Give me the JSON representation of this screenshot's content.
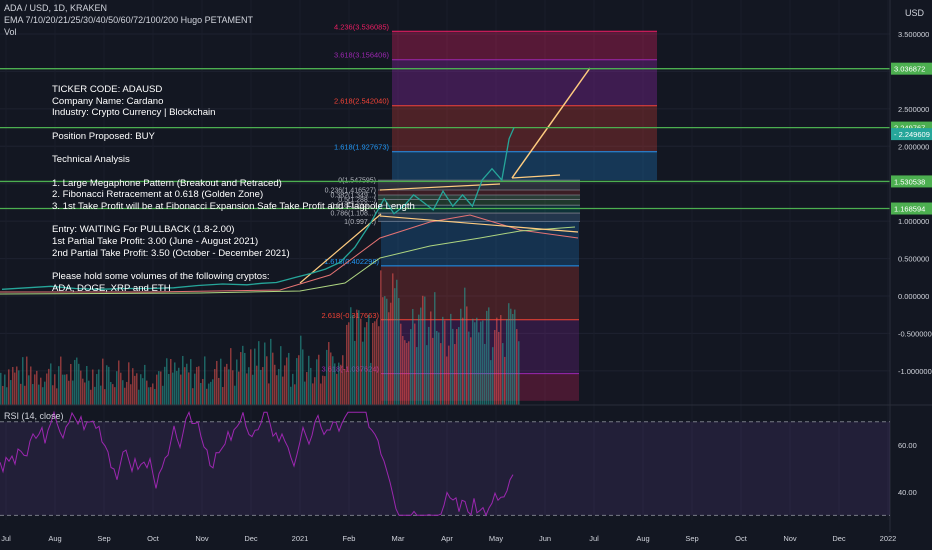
{
  "header": {
    "symbol_line": "ADA / USD, 1D, KRAKEN",
    "ema_line": "EMA 7/10/20/21/25/30/40/50/60/72/100/200 Hugo PETAMENT",
    "vol_label": "Vol",
    "currency": "USD",
    "rsi_label": "RSI (14, close)"
  },
  "colors": {
    "background": "#131722",
    "green_line": "#4caf50",
    "price_tag_green": "#26a69a",
    "rsi_line": "#9c27b0",
    "candle_up": "#26a69a",
    "candle_down": "#ef5350"
  },
  "note": {
    "lines_a": [
      "TICKER CODE: ADAUSD",
      "Company Name: Cardano",
      "Industry: Crypto Currency | Blockchain"
    ],
    "position": "Position Proposed: BUY",
    "analysis_title": "Technical Analysis",
    "lines_b": [
      "1. Large Megaphone Pattern (Breakout and Retraced)",
      "2. Fibonacci Retracement at 0.618 (Golden Zone)",
      "3. 1st Take Profit will be at Fibonacci Expansion Safe Take Profit and Flagpole Length"
    ],
    "lines_c": [
      "Entry: WAITING For PULLBACK (1.8-2.00)",
      "1st Partial Take Profit: 3.00 (June - August 2021)",
      "2nd Partial Take Profit: 3.50 (October - December 2021)"
    ],
    "lines_d": [
      "Please hold some volumes of the following cryptos:",
      "ADA, DOGE, XRP and ETH"
    ]
  },
  "chart_data": {
    "type": "line",
    "symbol": "ADAUSD",
    "ylim": [
      -1.4,
      3.6
    ],
    "price_axis_ticks": [
      "3.500000",
      "3.000000",
      "2.500000",
      "2.000000",
      "1.500000",
      "1.000000",
      "0.500000",
      "0.000000",
      "-0.500000",
      "-1.000000"
    ],
    "price_axis_values": [
      3.5,
      3.0,
      2.5,
      2.0,
      1.5,
      1.0,
      0.5,
      0.0,
      -0.5,
      -1.0
    ],
    "time_axis_labels": [
      "Jul",
      "Aug",
      "Sep",
      "Oct",
      "Nov",
      "Dec",
      "2021",
      "Feb",
      "Mar",
      "Apr",
      "May",
      "Jun",
      "Jul",
      "Aug",
      "Sep",
      "Oct",
      "Nov",
      "Dec",
      "2022"
    ],
    "horizontal_levels": [
      {
        "value": 3.036872,
        "label": "3.036872"
      },
      {
        "value": 2.249767,
        "label": "2.249767"
      },
      {
        "value": 1.530538,
        "label": "1.530538"
      },
      {
        "value": 1.168594,
        "label": "1.168594"
      }
    ],
    "current_price": {
      "value": 2.249609,
      "label": "2.249609"
    },
    "fib_expansion_levels": [
      {
        "ratio": 4.236,
        "value": 3.536085,
        "label": "4.236(3.536085)"
      },
      {
        "ratio": 3.618,
        "value": 3.156406,
        "label": "3.618(3.156406)"
      },
      {
        "ratio": 2.618,
        "value": 2.54204,
        "label": "2.618(2.542040)"
      },
      {
        "ratio": 1.618,
        "value": 1.927673,
        "label": "1.618(1.927673)"
      }
    ],
    "fib_retracement_labels": [
      "0(1.547595)",
      "0.236(1.416527)",
      "0.382(1.349...)",
      "0.5(1.288...)",
      "0.618(1.213...)",
      "0.786(1.108...)",
      "1(0.997...)"
    ],
    "fib_lower_levels": [
      {
        "ratio": 1.618,
        "value": 0.402298,
        "label": "1.618(0.402298)"
      },
      {
        "ratio": 2.618,
        "value": -0.317663,
        "label": "2.618(-0.317663)"
      },
      {
        "ratio": 3.618,
        "value": -1.037624,
        "label": "3.618(-1.037624)"
      }
    ],
    "rsi": {
      "levels": [
        70,
        30
      ],
      "ticks": [
        "60.00",
        "40.00"
      ],
      "tick_values": [
        60,
        40
      ],
      "range": [
        28,
        75
      ]
    },
    "price_series": {
      "months_since_jul_2020": [
        0.0,
        0.5,
        1.0,
        1.5,
        2.0,
        2.5,
        3.0,
        3.5,
        4.0,
        4.5,
        5.0,
        5.3,
        5.6,
        6.0,
        6.3,
        6.6,
        6.9,
        7.2,
        7.5,
        7.8,
        8.0,
        8.2,
        8.4,
        8.6,
        8.8,
        9.0,
        9.2,
        9.4,
        9.6,
        9.8,
        10.0,
        10.2,
        10.35,
        10.45
      ],
      "values": [
        0.09,
        0.11,
        0.13,
        0.1,
        0.09,
        0.1,
        0.1,
        0.11,
        0.14,
        0.16,
        0.15,
        0.17,
        0.18,
        0.25,
        0.3,
        0.36,
        0.45,
        0.65,
        0.95,
        1.3,
        1.1,
        1.2,
        1.35,
        1.25,
        1.15,
        1.4,
        1.2,
        1.35,
        1.2,
        1.55,
        1.7,
        1.55,
        2.1,
        2.25
      ]
    }
  }
}
